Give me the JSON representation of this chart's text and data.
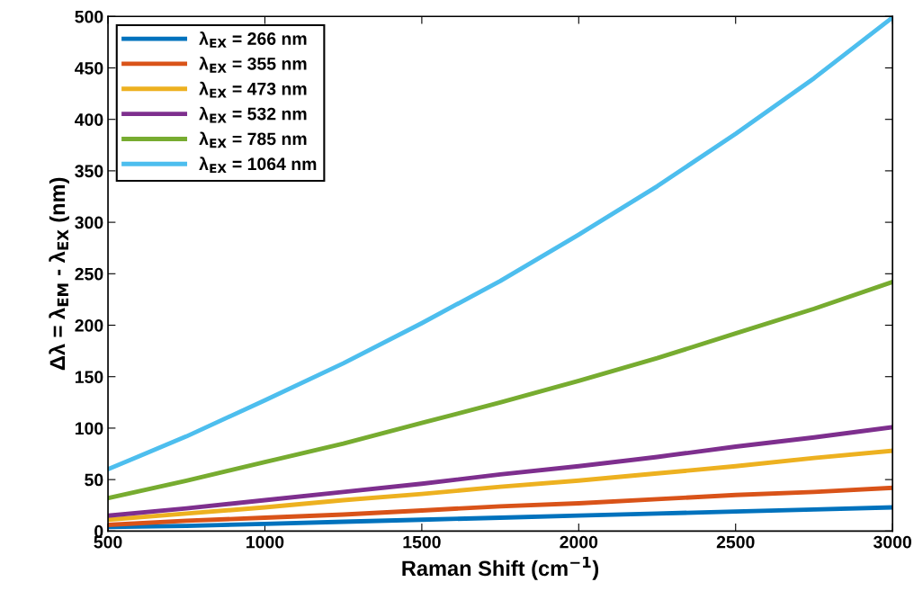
{
  "chart_data": {
    "type": "line",
    "xlabel": "Raman Shift (cm$^{−1}$)",
    "ylabel": "Δλ = λ$_{EM}$ - λ$_{EX}$ (nm)",
    "x": [
      500,
      750,
      1000,
      1250,
      1500,
      1750,
      2000,
      2250,
      2500,
      2750,
      3000
    ],
    "series": [
      {
        "name": "λ$_{EX}$ = 266 nm",
        "color": "#0072bd",
        "values": [
          4,
          5,
          7,
          9,
          11,
          13,
          15,
          17,
          19,
          21,
          23
        ]
      },
      {
        "name": "λ$_{EX}$ = 355 nm",
        "color": "#d95319",
        "values": [
          6,
          10,
          13,
          16,
          20,
          24,
          27,
          31,
          35,
          38,
          42
        ]
      },
      {
        "name": "λ$_{EX}$ = 473 nm",
        "color": "#edb120",
        "values": [
          11,
          17,
          23,
          30,
          36,
          43,
          49,
          56,
          63,
          71,
          78
        ]
      },
      {
        "name": "λ$_{EX}$ = 532 nm",
        "color": "#7e2f8e",
        "values": [
          15,
          22,
          30,
          38,
          46,
          55,
          63,
          72,
          82,
          91,
          101
        ]
      },
      {
        "name": "λ$_{EX}$ = 785 nm",
        "color": "#77ac30",
        "values": [
          32,
          49,
          67,
          85,
          105,
          125,
          146,
          168,
          192,
          216,
          242
        ]
      },
      {
        "name": "λ$_{EX}$ = 1064 nm",
        "color": "#4dbeee",
        "values": [
          60,
          92,
          127,
          163,
          202,
          243,
          288,
          335,
          386,
          440,
          499
        ]
      }
    ],
    "xlim": [
      500,
      3000
    ],
    "xticks": [
      500,
      1000,
      1500,
      2000,
      2500,
      3000
    ],
    "ylim": [
      0,
      500
    ],
    "yticks": [
      0,
      50,
      100,
      150,
      200,
      250,
      300,
      350,
      400,
      450,
      500
    ],
    "grid": false,
    "legend": "top left",
    "marker": "none",
    "line_style": "solid"
  }
}
